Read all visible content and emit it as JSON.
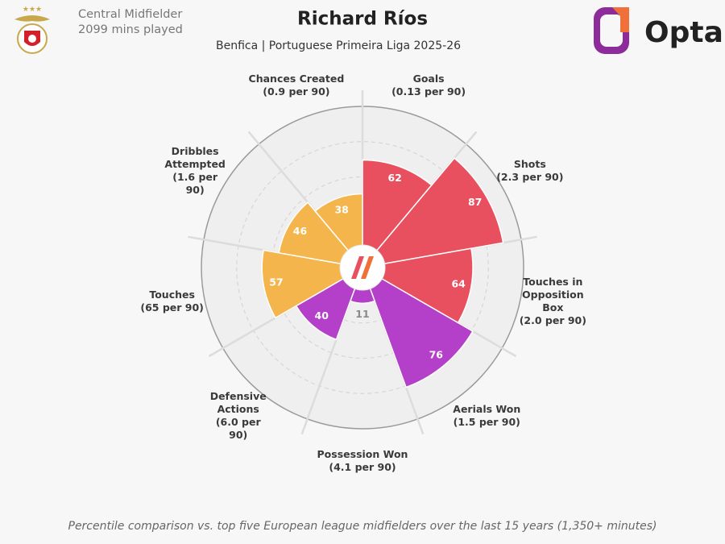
{
  "header": {
    "role": "Central Midfielder",
    "minutes": "2099 mins played",
    "brand": "Opta"
  },
  "chart_data": {
    "type": "polar-bar",
    "title": "Richard Ríos",
    "subtitle": "Benfica | Portuguese Primeira Liga 2025-26",
    "note": "Percentile comparison vs. top five European league midfielders over the last 15 years (1,350+ minutes)",
    "categories": [
      "Goals",
      "Shots",
      "Touches in Opposition Box",
      "Aerials Won",
      "Possession Won",
      "Defensive Actions",
      "Touches",
      "Dribbles Attempted",
      "Chances Created"
    ],
    "rates": [
      "(0.13 per 90)",
      "(2.3 per 90)",
      "(2.0 per 90)",
      "(1.5 per 90)",
      "(4.1 per 90)",
      "(6.0 per 90)",
      "(65 per 90)",
      "(1.6 per 90)",
      "(0.9 per 90)"
    ],
    "values": [
      62,
      87,
      64,
      76,
      11,
      40,
      57,
      46,
      38
    ],
    "colors": [
      "#e9505f",
      "#e9505f",
      "#e9505f",
      "#b43fc8",
      "#b43fc8",
      "#b43fc8",
      "#f4b54c",
      "#f4b54c",
      "#f4b54c"
    ],
    "rlim": [
      0,
      100
    ],
    "rticks": [
      25,
      50,
      75,
      100
    ]
  }
}
